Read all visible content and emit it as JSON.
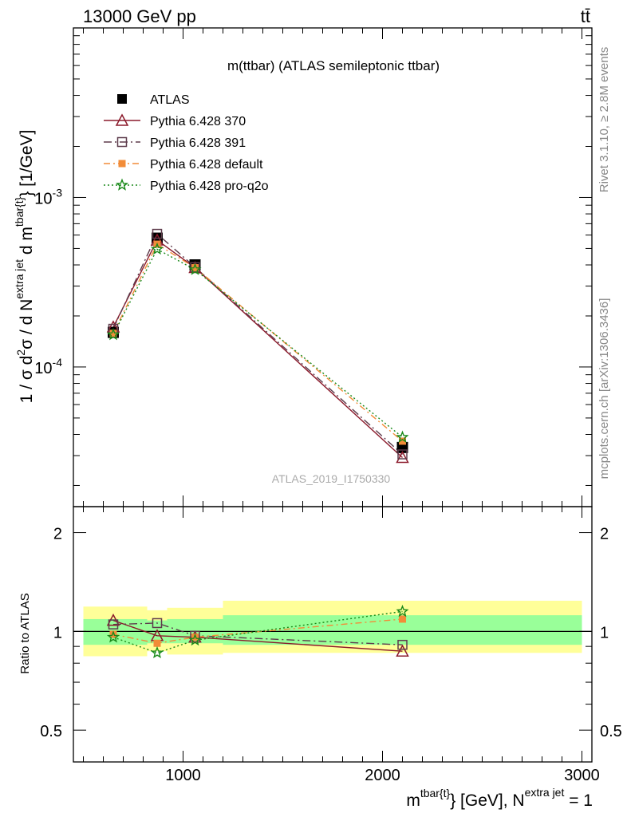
{
  "header": {
    "energy": "13000 GeV pp",
    "process": "tt̄"
  },
  "side": {
    "rivet": "Rivet 3.1.10, ≥ 2.8M events",
    "mcplots": "mcplots.cern.ch [arXiv:1306.3436]"
  },
  "chart_data": [
    {
      "type": "line",
      "title": "m(ttbar) (ATLAS semileptonic ttbar)",
      "watermark": "ATLAS_2019_I1750330",
      "xlabel": "m^{tbar{t}} [GeV], N^{extra jet} = 1",
      "ylabel": "1 / σ d²σ / d N^{extra jet} d m^{tbar{t}} [1/GeV]",
      "xlim": [
        450,
        3050
      ],
      "ylim": [
        1.5e-05,
        0.01
      ],
      "log_y": true,
      "x_ticks": [
        "1000",
        "2000",
        "3000"
      ],
      "y_ticks": [
        "10^-3",
        "10^-4"
      ],
      "legend_position": "top-left",
      "x": [
        650,
        870,
        1060,
        2100
      ],
      "series": [
        {
          "name": "ATLAS",
          "color": "#000000",
          "marker": "square",
          "values": [
            0.00016,
            0.000575,
            0.0004,
            3.35e-05
          ]
        },
        {
          "name": "Pythia 6.428 370",
          "color": "#8b1a2b",
          "marker": "triangle",
          "values": [
            0.000172,
            0.00056,
            0.000385,
            2.92e-05
          ]
        },
        {
          "name": "Pythia 6.428 391",
          "color": "#5e3c4c",
          "marker": "open-square",
          "values": [
            0.000168,
            0.00061,
            0.000388,
            3.05e-05
          ]
        },
        {
          "name": "Pythia 6.428 default",
          "color": "#f28c38",
          "marker": "filled-square",
          "values": [
            0.000158,
            0.00053,
            0.000385,
            3.65e-05
          ]
        },
        {
          "name": "Pythia 6.428 pro-q2o",
          "color": "#1a8a1a",
          "marker": "star",
          "values": [
            0.000155,
            0.000495,
            0.000375,
            3.85e-05
          ]
        }
      ]
    },
    {
      "type": "line",
      "ylabel": "Ratio to ATLAS",
      "xlabel": "m^{tbar{t}} [GeV], N^{extra jet} = 1",
      "xlim": [
        450,
        3050
      ],
      "ylim": [
        0.4,
        2.4
      ],
      "log_y": true,
      "y_ticks": [
        "2",
        "1",
        "0.5"
      ],
      "x_ticks": [
        "1000",
        "2000",
        "3000"
      ],
      "bands": [
        {
          "x0": 500,
          "x1": 820,
          "yellow": [
            0.84,
            1.19
          ],
          "green": [
            0.91,
            1.09
          ]
        },
        {
          "x0": 820,
          "x1": 920,
          "yellow": [
            0.87,
            1.16
          ],
          "green": [
            0.92,
            1.08
          ]
        },
        {
          "x0": 920,
          "x1": 1200,
          "yellow": [
            0.85,
            1.18
          ],
          "green": [
            0.92,
            1.09
          ]
        },
        {
          "x0": 1200,
          "x1": 3000,
          "yellow": [
            0.86,
            1.24
          ],
          "green": [
            0.91,
            1.12
          ]
        }
      ],
      "x": [
        650,
        870,
        1060,
        2100
      ],
      "series": [
        {
          "name": "Pythia 6.428 370",
          "color": "#8b1a2b",
          "marker": "triangle",
          "values": [
            1.08,
            0.97,
            0.96,
            0.87
          ]
        },
        {
          "name": "Pythia 6.428 391",
          "color": "#5e3c4c",
          "marker": "open-square",
          "values": [
            1.05,
            1.06,
            0.97,
            0.91
          ]
        },
        {
          "name": "Pythia 6.428 default",
          "color": "#f28c38",
          "marker": "filled-square",
          "values": [
            0.98,
            0.92,
            0.96,
            1.09
          ]
        },
        {
          "name": "Pythia 6.428 pro-q2o",
          "color": "#1a8a1a",
          "marker": "star",
          "values": [
            0.96,
            0.86,
            0.94,
            1.15
          ]
        }
      ]
    }
  ]
}
